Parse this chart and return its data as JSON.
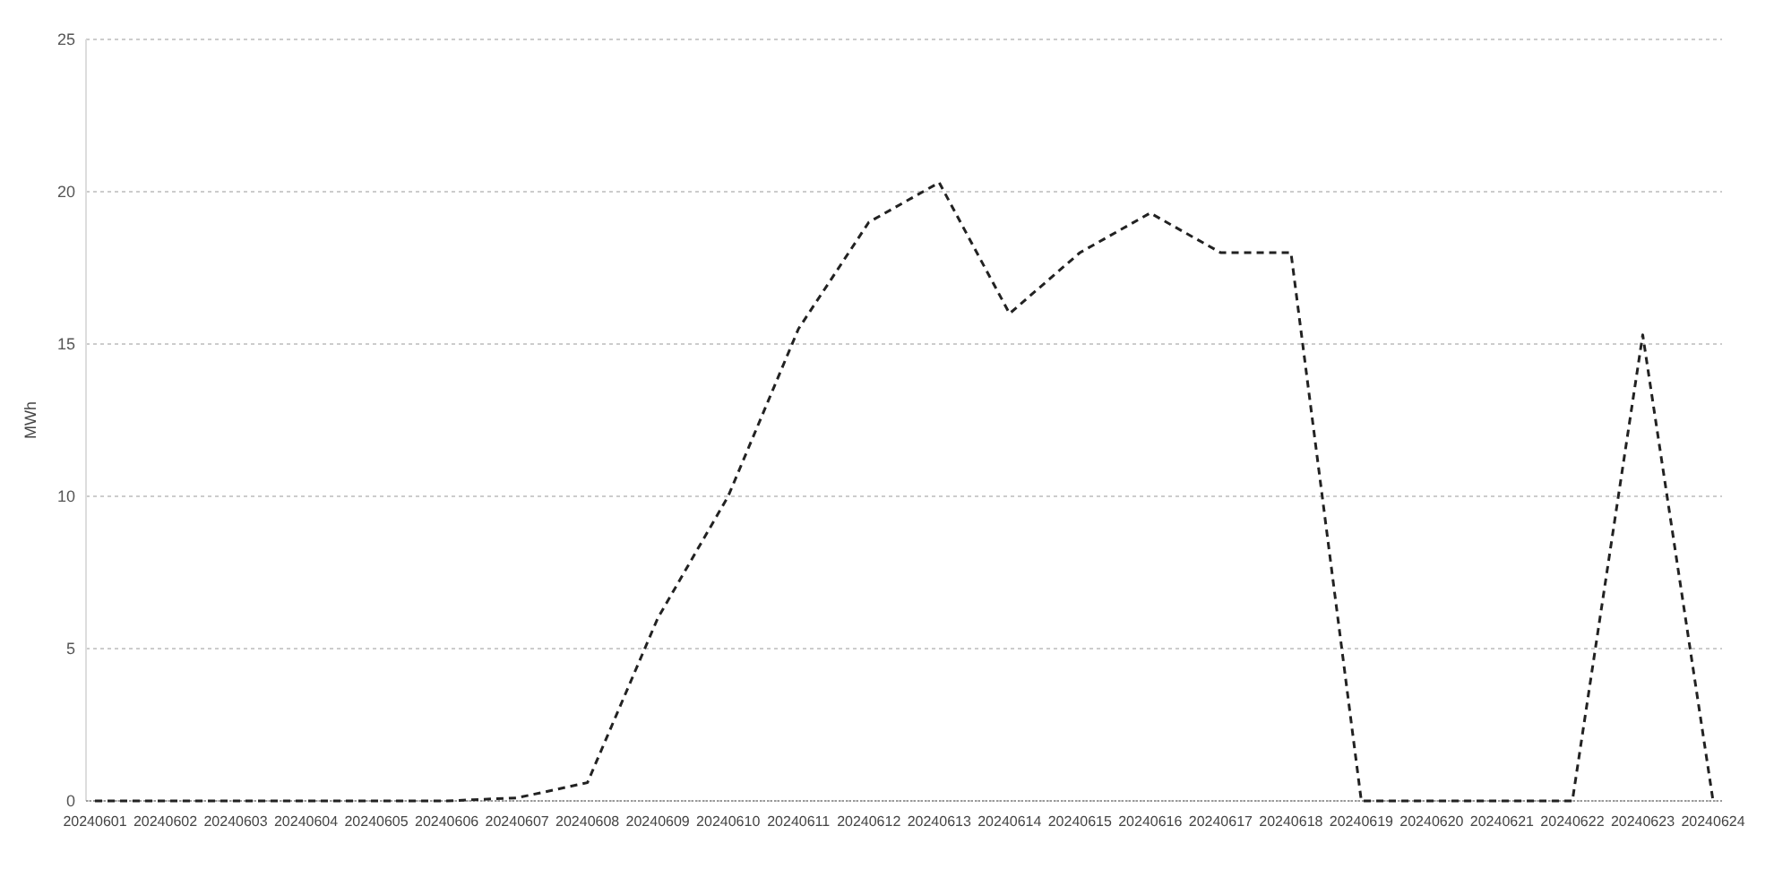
{
  "chart_data": {
    "type": "line",
    "ylabel": "MWh",
    "categories": [
      "20240601",
      "20240602",
      "20240603",
      "20240604",
      "20240605",
      "20240606",
      "20240607",
      "20240608",
      "20240609",
      "20240610",
      "20240611",
      "20240612",
      "20240613",
      "20240614",
      "20240615",
      "20240616",
      "20240617",
      "20240618",
      "20240619",
      "20240620",
      "20240621",
      "20240622",
      "20240623",
      "20240624"
    ],
    "series": [
      {
        "color": "#222222",
        "values": [
          0,
          0,
          0,
          0,
          0,
          0,
          0.1,
          0.6,
          6,
          10,
          15.5,
          19,
          20.3,
          16,
          18,
          19.3,
          18,
          18,
          0,
          0,
          0,
          0,
          15.3,
          0
        ]
      }
    ],
    "ylim": [
      0,
      25
    ],
    "yticks": [
      0,
      5,
      10,
      15,
      20,
      25
    ],
    "grid": "y",
    "line_style": "dashed",
    "marker": "none"
  }
}
